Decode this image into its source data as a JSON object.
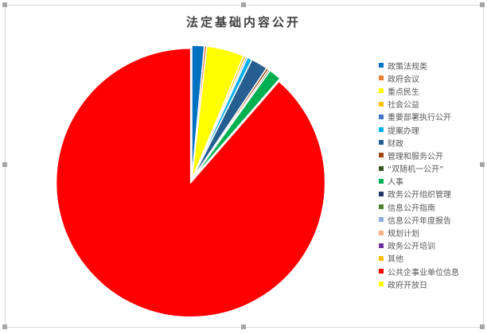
{
  "chart_data": {
    "type": "pie",
    "title": "法定基础内容公开",
    "legend_position": "right",
    "slices": [
      {
        "label": "政策法规类",
        "value": 1.5,
        "color": "#0070c0"
      },
      {
        "label": "政府会议",
        "value": 0.3,
        "color": "#ed7d31"
      },
      {
        "label": "重点民生",
        "value": 4.5,
        "color": "#ffff00"
      },
      {
        "label": "社会公益",
        "value": 0.3,
        "color": "#ffc000"
      },
      {
        "label": "重要部署执行公开",
        "value": 0.2,
        "color": "#4472c4"
      },
      {
        "label": "提案办理",
        "value": 0.6,
        "color": "#00b0f0"
      },
      {
        "label": "财政",
        "value": 2.0,
        "color": "#255e91"
      },
      {
        "label": "管理和服务公开",
        "value": 0.3,
        "color": "#9e480e"
      },
      {
        "label": "“双随机一公开”",
        "value": 0.2,
        "color": "#375623"
      },
      {
        "label": "人事",
        "value": 1.5,
        "color": "#00b050"
      },
      {
        "label": "政务公开组织管理",
        "value": 0,
        "color": "#203864"
      },
      {
        "label": "信息公开指南",
        "value": 0,
        "color": "#548235"
      },
      {
        "label": "信息公开年度报告",
        "value": 0,
        "color": "#8faadc"
      },
      {
        "label": "规划计划",
        "value": 0,
        "color": "#f4b183"
      },
      {
        "label": "政务公开培训",
        "value": 0,
        "color": "#7030a0"
      },
      {
        "label": "其他",
        "value": 0,
        "color": "#ffc000"
      },
      {
        "label": "公共企事业单位信息",
        "value": 88.6,
        "color": "#ff0000"
      },
      {
        "label": "政府开放日",
        "value": 0,
        "color": "#ffff00"
      }
    ]
  }
}
